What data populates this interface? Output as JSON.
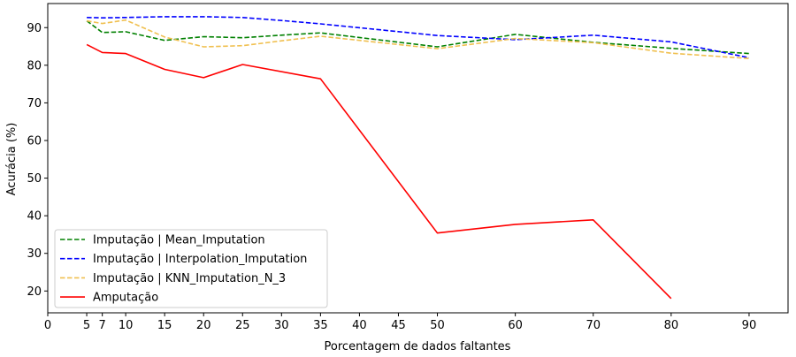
{
  "chart_data": {
    "type": "line",
    "title": "",
    "xlabel": "Porcentagem de dados faltantes",
    "ylabel": "Acurácia (%)",
    "xlim": [
      0,
      95
    ],
    "ylim": [
      14.2,
      96.4
    ],
    "xticks": [
      0,
      5,
      7,
      10,
      15,
      20,
      25,
      30,
      35,
      40,
      45,
      50,
      60,
      70,
      80,
      90
    ],
    "yticks": [
      20,
      30,
      40,
      50,
      60,
      70,
      80,
      90
    ],
    "grid": false,
    "legend_position": "lower-left",
    "series": [
      {
        "name": "Imputação | Mean_Imputation",
        "color": "#008000",
        "line_style": "dashed",
        "x": [
          5,
          7,
          10,
          15,
          20,
          25,
          30,
          35,
          50,
          60,
          70,
          80,
          90
        ],
        "values": [
          91.8,
          88.7,
          88.9,
          86.6,
          87.6,
          87.3,
          88.0,
          88.6,
          84.9,
          88.2,
          86.1,
          84.5,
          83.1
        ]
      },
      {
        "name": "Imputação | Interpolation_Imputation",
        "color": "#0000ff",
        "line_style": "dashed",
        "x": [
          5,
          7,
          10,
          15,
          20,
          25,
          30,
          35,
          50,
          60,
          70,
          80,
          90
        ],
        "values": [
          92.7,
          92.6,
          92.7,
          92.9,
          92.9,
          92.7,
          91.9,
          91.0,
          87.9,
          86.8,
          88.0,
          86.2,
          82.0
        ]
      },
      {
        "name": "Imputação | KNN_Imputation_N_3",
        "color": "#f0c050",
        "line_style": "dashed",
        "x": [
          5,
          7,
          10,
          15,
          20,
          25,
          30,
          35,
          50,
          60,
          70,
          80,
          90
        ],
        "values": [
          91.8,
          91.1,
          92.0,
          87.5,
          84.9,
          85.2,
          86.5,
          87.7,
          84.4,
          87.1,
          86.0,
          83.2,
          81.8
        ]
      },
      {
        "name": "Amputação",
        "color": "#ff0000",
        "line_style": "solid",
        "x": [
          5,
          7,
          10,
          15,
          20,
          25,
          35,
          50,
          60,
          70,
          80
        ],
        "values": [
          85.5,
          83.4,
          83.1,
          78.9,
          76.7,
          80.2,
          76.4,
          35.4,
          37.7,
          38.9,
          18.0
        ]
      }
    ]
  }
}
